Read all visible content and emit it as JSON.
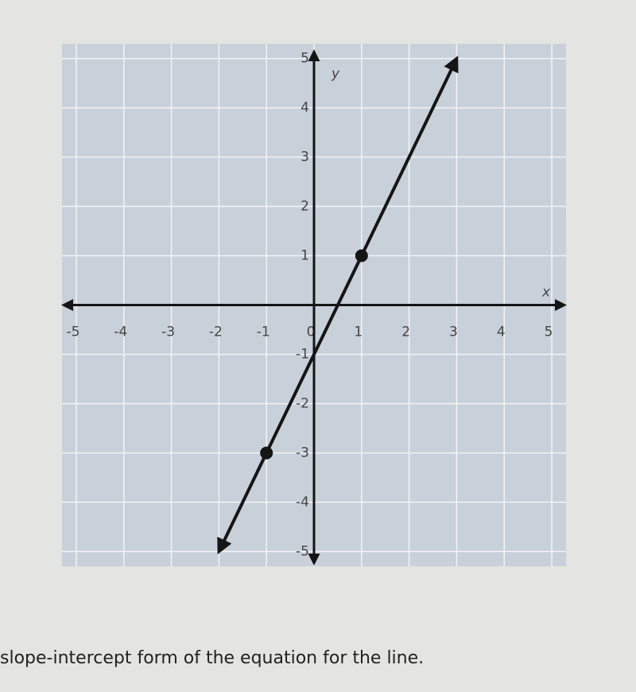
{
  "chart_data": {
    "type": "line",
    "x_label": "x",
    "y_label": "y",
    "xlim": [
      -5.3,
      5.3
    ],
    "ylim": [
      -5.3,
      5.3
    ],
    "xticks": [
      -5,
      -4,
      -3,
      -2,
      -1,
      0,
      1,
      2,
      3,
      4,
      5
    ],
    "yticks": [
      -5,
      -4,
      -3,
      -2,
      -1,
      1,
      2,
      3,
      4,
      5
    ],
    "grid": true,
    "background": "#c8d0da",
    "series": [
      {
        "x": [
          -2,
          3
        ],
        "values": [
          -5,
          5
        ],
        "color": "#151515"
      },
      {
        "x": [
          -1,
          1
        ],
        "values": [
          -3,
          1
        ],
        "color": "#151515"
      }
    ]
  },
  "caption": "slope-intercept form of the equation for the line."
}
